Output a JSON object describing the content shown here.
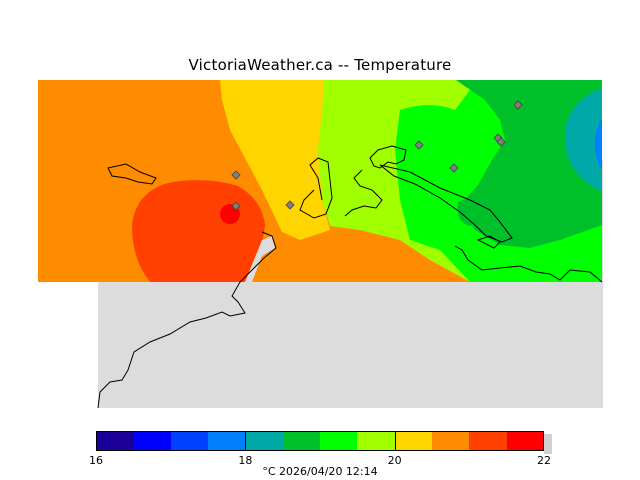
{
  "title": "VictoriaWeather.ca -- Temperature",
  "colors": {
    "ocean": "#dcdcdc",
    "coast": "#000000",
    "station": "#808080"
  },
  "legend": {
    "swatches": [
      "#1a0099",
      "#0000ff",
      "#0040ff",
      "#0080ff",
      "#00a8a8",
      "#00c02a",
      "#00ff00",
      "#a0ff00",
      "#ffd500",
      "#ff8c00",
      "#ff4000",
      "#ff0000"
    ],
    "tick_labels": [
      "16",
      "18",
      "20",
      "22"
    ],
    "caption": "°C  2026/04/20 12:14"
  }
}
